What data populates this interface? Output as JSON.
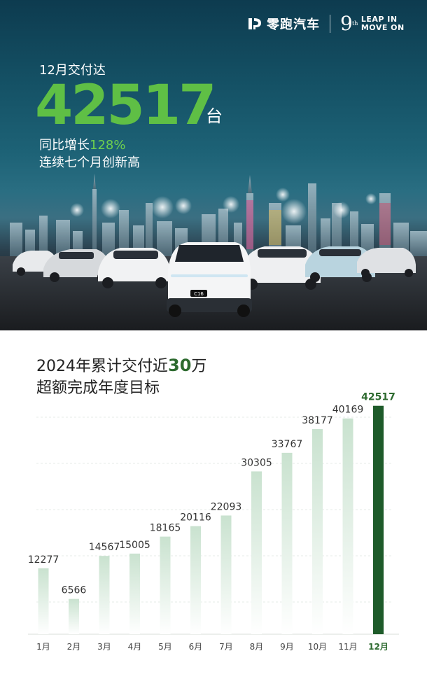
{
  "brand": {
    "name": "零跑汽车",
    "anniversary_number": "9",
    "anniversary_suffix": "th",
    "slogan_line1": "LEAP IN",
    "slogan_line2": "MOVE ON"
  },
  "hero": {
    "month_label": "12月交付达",
    "deliveries": "42517",
    "unit": "台",
    "yoy_prefix": "同比增长",
    "yoy_value": "128%",
    "streak_text": "连续七个月创新高",
    "featured_car_badge": "C16"
  },
  "summary": {
    "title_prefix": "2024年累计交付近",
    "title_emphasis": "30",
    "title_suffix": "万",
    "subtitle": "超额完成年度目标"
  },
  "colors": {
    "accent_green": "#5fbf45",
    "bar_top": "#c9e2cf",
    "bar_bottom": "#ffffff",
    "highlight_bar": "#1e5b2a",
    "title_emphasis": "#2d6a2f"
  },
  "chart_data": {
    "type": "bar",
    "categories": [
      "1月",
      "2月",
      "3月",
      "4月",
      "5月",
      "6月",
      "7月",
      "8月",
      "9月",
      "10月",
      "11月",
      "12月"
    ],
    "values": [
      12277,
      6566,
      14567,
      15005,
      18165,
      20116,
      22093,
      30305,
      33767,
      38177,
      40169,
      42517
    ],
    "highlight_index": 11,
    "title": "",
    "xlabel": "",
    "ylabel": "",
    "ylim": [
      0,
      43000
    ],
    "grid": true,
    "legend": "none"
  }
}
